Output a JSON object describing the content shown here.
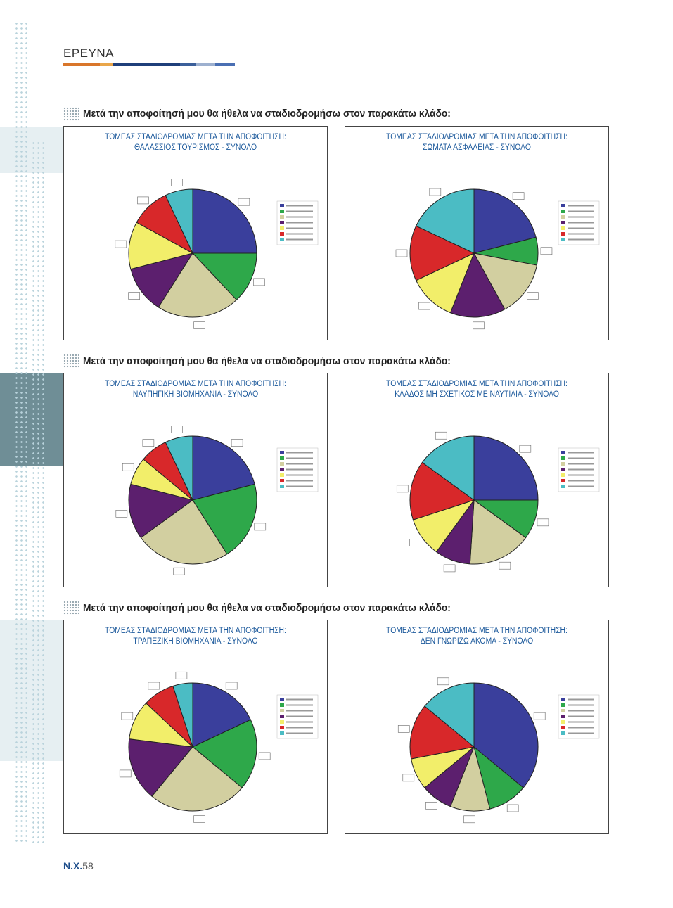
{
  "header": {
    "title": "ΕΡΕΥΝΑ",
    "bar_colors": [
      "#d9762a",
      "#e9a64a",
      "#1f3f7a",
      "#3b5f9a",
      "#9db0cf",
      "#4a6fb3"
    ]
  },
  "sections": [
    {
      "title": "Μετά την αποφοίτησή μου θα ήθελα να σταδιοδρομήσω στον παρακάτω κλάδο:"
    },
    {
      "title": "Μετά την αποφοίτησή μου θα ήθελα να σταδιοδρομήσω στον παρακάτω κλάδο:"
    },
    {
      "title": "Μετά την αποφοίτησή μου θα ήθελα να σταδιοδρομήσω στον παρακάτω κλάδο:"
    }
  ],
  "slice_colors": [
    "#3a3f9c",
    "#2ea84a",
    "#d2cfa0",
    "#5c1f6e",
    "#f2ee6a",
    "#d8282a",
    "#4bbcc4"
  ],
  "chart_data": [
    {
      "type": "pie",
      "title": "ΤΟΜΕΑΣ ΣΤΑΔΙΟΔΡΟΜΙΑΣ ΜΕΤΑ ΤΗΝ ΑΠΟΦΟΙΤΗΣΗ:",
      "subtitle": "ΘΑΛΑΣΣΙΟΣ ΤΟΥΡΙΣΜΟΣ - ΣΥΝΟΛΟ",
      "values": [
        25,
        13,
        21,
        12,
        12,
        10,
        7
      ]
    },
    {
      "type": "pie",
      "title": "ΤΟΜΕΑΣ ΣΤΑΔΙΟΔΡΟΜΙΑΣ ΜΕΤΑ ΤΗΝ ΑΠΟΦΟΙΤΗΣΗ:",
      "subtitle": "ΣΩΜΑΤΑ ΑΣΦΑΛΕΙΑΣ - ΣΥΝΟΛΟ",
      "values": [
        21,
        7,
        14,
        14,
        12,
        14,
        18
      ]
    },
    {
      "type": "pie",
      "title": "ΤΟΜΕΑΣ ΣΤΑΔΙΟΔΡΟΜΙΑΣ ΜΕΤΑ ΤΗΝ ΑΠΟΦΟΙΤΗΣΗ:",
      "subtitle": "ΝΑΥΠΗΓΙΚΗ ΒΙΟΜΗΧΑΝΙΑ - ΣΥΝΟΛΟ",
      "values": [
        21,
        20,
        24,
        14,
        7,
        7,
        7
      ]
    },
    {
      "type": "pie",
      "title": "ΤΟΜΕΑΣ ΣΤΑΔΙΟΔΡΟΜΙΑΣ ΜΕΤΑ ΤΗΝ ΑΠΟΦΟΙΤΗΣΗ:",
      "subtitle": "ΚΛΑΔΟΣ ΜΗ ΣΧΕΤΙΚΟΣ ΜΕ ΝΑΥΤΙΛΙΑ - ΣΥΝΟΛΟ",
      "values": [
        25,
        10,
        16,
        9,
        10,
        15,
        15
      ]
    },
    {
      "type": "pie",
      "title": "ΤΟΜΕΑΣ ΣΤΑΔΙΟΔΡΟΜΙΑΣ ΜΕΤΑ ΤΗΝ ΑΠΟΦΟΙΤΗΣΗ:",
      "subtitle": "ΤΡΑΠΕΖΙΚΗ ΒΙΟΜΗΧΑΝΙΑ - ΣΥΝΟΛΟ",
      "values": [
        18,
        18,
        25,
        16,
        10,
        8,
        5
      ]
    },
    {
      "type": "pie",
      "title": "ΤΟΜΕΑΣ ΣΤΑΔΙΟΔΡΟΜΙΑΣ ΜΕΤΑ ΤΗΝ ΑΠΟΦΟΙΤΗΣΗ:",
      "subtitle": "ΔΕΝ ΓΝΩΡΙΖΩ ΑΚΟΜΑ - ΣΥΝΟΛΟ",
      "values": [
        36,
        10,
        10,
        8,
        8,
        14,
        14
      ]
    }
  ],
  "footer": {
    "prefix": "N.X.",
    "page": "58"
  }
}
